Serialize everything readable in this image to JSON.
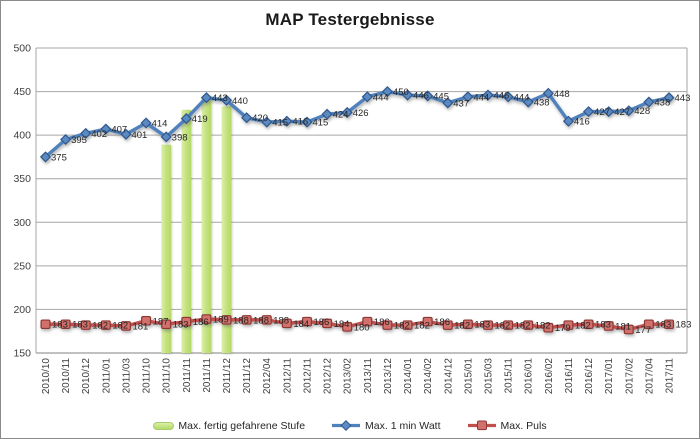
{
  "title": "MAP Testergebnisse",
  "colors": {
    "watt_blue": "#4F81BD",
    "watt_blue_dark": "#2F578C",
    "puls_red": "#C0504D",
    "puls_red_dark": "#8E3734",
    "stufe_green": "#C3E07D",
    "stufe_green_light": "#D9EFA8",
    "stufe_green_deep": "#B3DA66",
    "gridline": "#A6A6A6",
    "axis_line": "#808080",
    "label_text": "#262626",
    "tick_text": "#3F3F3F"
  },
  "legend": [
    {
      "label": "Max. fertig gefahrene Stufe",
      "type": "bar",
      "color": "#C3E07D"
    },
    {
      "label": "Max. 1 min Watt",
      "type": "line-diamond",
      "color": "#4F81BD"
    },
    {
      "label": "Max. Puls",
      "type": "line-square",
      "color": "#C0504D"
    }
  ],
  "chart_data": {
    "type": "combo",
    "title": "MAP Testergebnisse",
    "xlabel": "",
    "ylabel": "",
    "grid": true,
    "legend_position": "bottom",
    "y_axis": {
      "min": 150,
      "max": 500,
      "step": 50,
      "ticks": [
        150,
        200,
        250,
        300,
        350,
        400,
        450,
        500
      ]
    },
    "categories": [
      "2010/10",
      "2010/11",
      "2010/12",
      "2011/01",
      "2011/03",
      "2011/10",
      "2011/10",
      "2011/11",
      "2011/11",
      "2011/12",
      "2011/12",
      "2012/04",
      "2012/11",
      "2012/11",
      "2012/12",
      "2013/02",
      "2013/11",
      "2013/12",
      "2014/01",
      "2014/02",
      "2014/12",
      "2015/01",
      "2015/03",
      "2015/11",
      "2016/01",
      "2016/02",
      "2016/11",
      "2016/12",
      "2017/01",
      "2017/02",
      "2017/04",
      "2017/11"
    ],
    "series": [
      {
        "name": "Max. fertig gefahrene Stufe",
        "type": "bar",
        "color": "#C3E07D",
        "data_labels": false,
        "category_indices": [
          6,
          7,
          8,
          9
        ],
        "top_values_left_axis_estimate": [
          389,
          429,
          443,
          433
        ]
      },
      {
        "name": "Max. 1 min Watt",
        "type": "line",
        "marker": "diamond",
        "color": "#4F81BD",
        "data_labels": true,
        "values": [
          375,
          395,
          402,
          407,
          401,
          414,
          398,
          419,
          443,
          440,
          420,
          415,
          416,
          415,
          424,
          426,
          444,
          450,
          446,
          445,
          437,
          444,
          446,
          444,
          438,
          448,
          416,
          427,
          427,
          428,
          438,
          443
        ]
      },
      {
        "name": "Max. Puls",
        "type": "line",
        "marker": "square",
        "color": "#C0504D",
        "data_labels": true,
        "values": [
          183,
          183,
          182,
          182,
          181,
          187,
          183,
          186,
          189,
          188,
          188,
          188,
          184,
          186,
          184,
          180,
          186,
          182,
          182,
          186,
          182,
          183,
          182,
          182,
          182,
          179,
          182,
          183,
          181,
          177,
          183,
          183
        ]
      }
    ]
  }
}
